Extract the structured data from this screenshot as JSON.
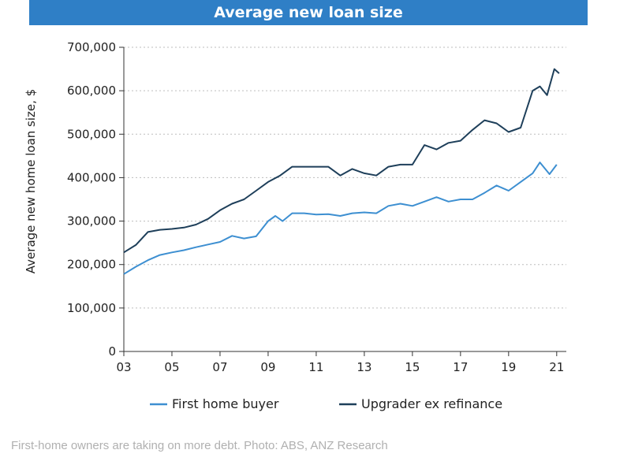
{
  "chart_data": {
    "type": "line",
    "title": "Average new loan size",
    "ylabel": "Average new home loan size, $",
    "xlabel": "",
    "xlim": [
      2003,
      2021.4
    ],
    "ylim": [
      0,
      700000
    ],
    "x_tick_values": [
      2003,
      2005,
      2007,
      2009,
      2011,
      2013,
      2015,
      2017,
      2019,
      2021
    ],
    "x_tick_labels": [
      "03",
      "05",
      "07",
      "09",
      "11",
      "13",
      "15",
      "17",
      "19",
      "21"
    ],
    "y_tick_values": [
      0,
      100000,
      200000,
      300000,
      400000,
      500000,
      600000,
      700000
    ],
    "y_tick_labels": [
      "0",
      "100,000",
      "200,000",
      "300,000",
      "400,000",
      "500,000",
      "600,000",
      "700,000"
    ],
    "grid": true,
    "legend_position": "bottom",
    "series": [
      {
        "name": "First home buyer",
        "color": "#3d8fd1",
        "x": [
          2003.0,
          2003.5,
          2004.0,
          2004.5,
          2005.0,
          2005.5,
          2006.0,
          2006.5,
          2007.0,
          2007.5,
          2008.0,
          2008.5,
          2009.0,
          2009.3,
          2009.6,
          2010.0,
          2010.5,
          2011.0,
          2011.5,
          2012.0,
          2012.5,
          2013.0,
          2013.5,
          2014.0,
          2014.5,
          2015.0,
          2015.5,
          2016.0,
          2016.5,
          2017.0,
          2017.5,
          2018.0,
          2018.5,
          2019.0,
          2019.5,
          2020.0,
          2020.3,
          2020.7,
          2021.0
        ],
        "y": [
          178000,
          195000,
          210000,
          222000,
          228000,
          233000,
          240000,
          246000,
          252000,
          266000,
          260000,
          265000,
          300000,
          312000,
          300000,
          318000,
          318000,
          315000,
          316000,
          312000,
          318000,
          320000,
          318000,
          335000,
          340000,
          335000,
          345000,
          355000,
          345000,
          350000,
          350000,
          365000,
          382000,
          370000,
          390000,
          410000,
          435000,
          408000,
          430000
        ]
      },
      {
        "name": "Upgrader ex refinance",
        "color": "#1e3f5a",
        "x": [
          2003.0,
          2003.5,
          2004.0,
          2004.5,
          2005.0,
          2005.5,
          2006.0,
          2006.5,
          2007.0,
          2007.5,
          2008.0,
          2008.5,
          2009.0,
          2009.5,
          2010.0,
          2010.5,
          2011.0,
          2011.5,
          2012.0,
          2012.5,
          2013.0,
          2013.5,
          2014.0,
          2014.5,
          2015.0,
          2015.5,
          2016.0,
          2016.5,
          2017.0,
          2017.5,
          2018.0,
          2018.5,
          2019.0,
          2019.5,
          2020.0,
          2020.3,
          2020.6,
          2020.9,
          2021.1
        ],
        "y": [
          228000,
          245000,
          275000,
          280000,
          282000,
          285000,
          292000,
          305000,
          325000,
          340000,
          350000,
          370000,
          390000,
          405000,
          425000,
          425000,
          425000,
          425000,
          405000,
          420000,
          410000,
          405000,
          425000,
          430000,
          430000,
          475000,
          465000,
          480000,
          485000,
          510000,
          532000,
          525000,
          505000,
          515000,
          600000,
          610000,
          590000,
          650000,
          640000
        ]
      }
    ],
    "caption": "First-home owners are taking on more debt. Photo: ABS, ANZ Research"
  }
}
